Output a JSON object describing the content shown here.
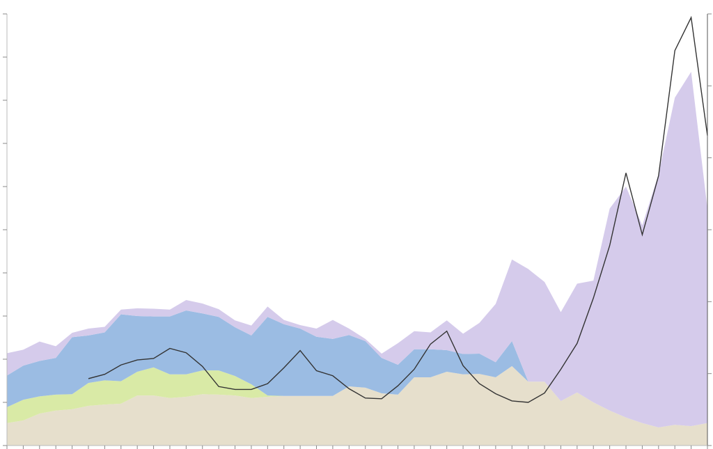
{
  "chart_data": {
    "type": "stacked-area",
    "x": [
      0,
      1,
      2,
      3,
      4,
      5,
      6,
      7,
      8,
      9,
      10,
      11,
      12,
      13,
      14,
      15,
      16,
      17,
      18,
      19,
      20,
      21,
      22,
      23,
      24,
      25,
      26,
      27,
      28,
      29,
      30,
      31,
      32,
      33,
      34,
      35,
      36,
      37,
      38,
      39,
      40,
      41,
      42,
      43
    ],
    "xlim": [
      0,
      43
    ],
    "ylim": [
      0,
      10
    ],
    "yticks": [
      0,
      1,
      2,
      3,
      4,
      5,
      6,
      7,
      8,
      9,
      10
    ],
    "y2lim": [
      0,
      6
    ],
    "y2ticks": [
      0,
      1,
      2,
      3,
      4,
      5,
      6
    ],
    "series": [
      {
        "color": "#e6dfcc",
        "values": [
          0.52,
          0.58,
          0.74,
          0.81,
          0.84,
          0.92,
          0.95,
          0.97,
          1.16,
          1.16,
          1.1,
          1.13,
          1.19,
          1.18,
          1.16,
          1.1,
          1.13,
          1.15,
          1.15,
          1.15,
          1.15,
          1.37,
          1.34,
          1.21,
          1.18,
          1.58,
          1.58,
          1.71,
          1.65,
          1.66,
          1.58,
          1.84,
          1.48,
          1.48,
          1.03,
          1.23,
          1.0,
          0.81,
          0.65,
          0.52,
          0.42,
          0.48,
          0.45,
          0.52
        ]
      },
      {
        "color": "#d9eaa6",
        "values": [
          0.37,
          0.48,
          0.4,
          0.37,
          0.35,
          0.53,
          0.56,
          0.52,
          0.55,
          0.65,
          0.55,
          0.52,
          0.55,
          0.56,
          0.45,
          0.32,
          0.03,
          0,
          0,
          0,
          0,
          0,
          0,
          0,
          0,
          0,
          0,
          0,
          0,
          0,
          0,
          0,
          0,
          0,
          0,
          0,
          0,
          0,
          0,
          0,
          0,
          0,
          0,
          0
        ]
      },
      {
        "color": "#9bbce3",
        "values": [
          0.73,
          0.79,
          0.82,
          0.85,
          1.32,
          1.1,
          1.11,
          1.55,
          1.29,
          1.18,
          1.34,
          1.48,
          1.32,
          1.24,
          1.13,
          1.13,
          1.82,
          1.66,
          1.56,
          1.37,
          1.32,
          1.19,
          1.08,
          0.82,
          0.69,
          0.65,
          0.65,
          0.5,
          0.47,
          0.47,
          0.35,
          0.58,
          0,
          0,
          0,
          0,
          0,
          0,
          0,
          0,
          0,
          0,
          0,
          0
        ]
      },
      {
        "color": "#d5cbeb",
        "values": [
          0.52,
          0.37,
          0.45,
          0.27,
          0.1,
          0.16,
          0.13,
          0.11,
          0.18,
          0.18,
          0.16,
          0.24,
          0.23,
          0.18,
          0.16,
          0.23,
          0.24,
          0.1,
          0.08,
          0.19,
          0.44,
          0.15,
          0.05,
          0.1,
          0.5,
          0.42,
          0.39,
          0.69,
          0.47,
          0.71,
          1.35,
          1.89,
          2.61,
          2.31,
          2.06,
          2.52,
          2.82,
          4.68,
          5.35,
          4.58,
          5.87,
          7.58,
          8.21,
          4.97
        ]
      },
      {
        "type": "line",
        "axis": "y2",
        "color": "#333333",
        "values": [
          null,
          null,
          null,
          null,
          null,
          0.93,
          0.99,
          1.12,
          1.19,
          1.21,
          1.35,
          1.29,
          1.1,
          0.82,
          0.78,
          0.78,
          0.86,
          1.08,
          1.32,
          1.04,
          0.97,
          0.79,
          0.66,
          0.65,
          0.83,
          1.06,
          1.41,
          1.59,
          1.11,
          0.86,
          0.72,
          0.62,
          0.6,
          0.73,
          1.06,
          1.42,
          2.05,
          2.78,
          3.79,
          2.93,
          3.75,
          5.49,
          5.95,
          4.31
        ]
      }
    ]
  }
}
